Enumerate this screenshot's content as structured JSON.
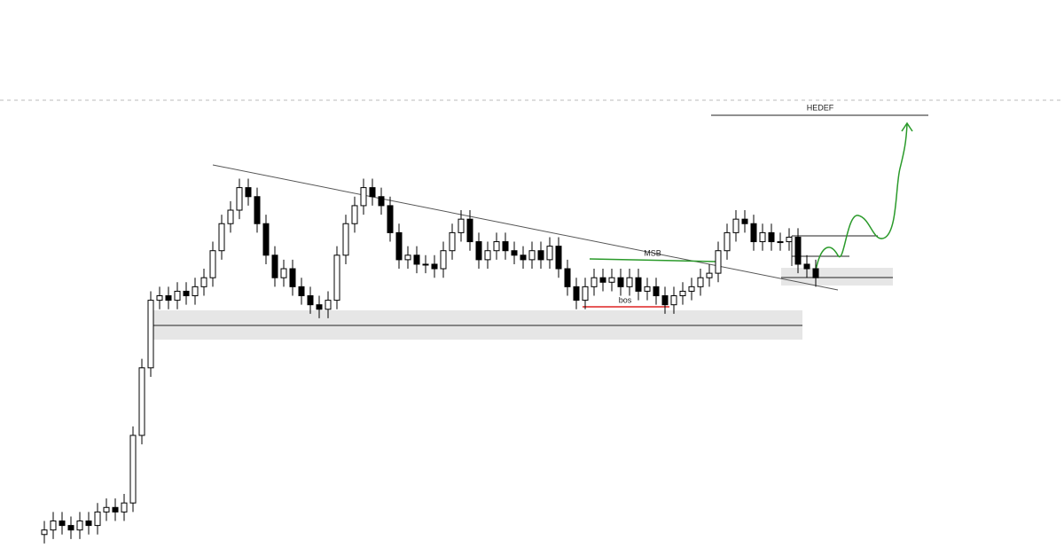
{
  "chart_data": {
    "type": "candlestick",
    "annotations": {
      "target": "HEDEF",
      "break": "MSB",
      "bos": "bos"
    },
    "ylim": [
      0,
      100
    ],
    "up_color": "#ffffff",
    "down_color": "#000000",
    "open": [
      3,
      4,
      6,
      5,
      4,
      6,
      5,
      8,
      9,
      8,
      10,
      25,
      40,
      55,
      56,
      55,
      57,
      56,
      58,
      60,
      66,
      72,
      75,
      80,
      78,
      72,
      65,
      60,
      62,
      58,
      56,
      54,
      53,
      55,
      65,
      72,
      76,
      80,
      78,
      76,
      70,
      64,
      65,
      63,
      63,
      62,
      66,
      70,
      73,
      68,
      64,
      66,
      68,
      66,
      65,
      64,
      66,
      64,
      67,
      62,
      58,
      55,
      58,
      60,
      59,
      60,
      58,
      60,
      57,
      58,
      56,
      54,
      56,
      57,
      58,
      60,
      61,
      66,
      70,
      73,
      72,
      68,
      70,
      68,
      68,
      69,
      63,
      62
    ],
    "high": [
      6,
      8,
      8,
      7,
      8,
      8,
      10,
      11,
      11,
      12,
      27,
      42,
      57,
      58,
      58,
      59,
      59,
      60,
      62,
      68,
      74,
      77,
      82,
      82,
      80,
      74,
      67,
      64,
      64,
      60,
      58,
      56,
      57,
      67,
      74,
      78,
      82,
      82,
      80,
      78,
      72,
      67,
      67,
      65,
      65,
      68,
      72,
      75,
      75,
      70,
      68,
      70,
      70,
      68,
      67,
      68,
      68,
      69,
      69,
      64,
      60,
      60,
      62,
      62,
      62,
      62,
      62,
      62,
      60,
      60,
      58,
      58,
      59,
      60,
      62,
      63,
      68,
      72,
      75,
      75,
      74,
      72,
      72,
      70,
      71,
      71,
      65,
      64
    ],
    "low": [
      1,
      2,
      3,
      2,
      2,
      3,
      3,
      6,
      6,
      6,
      8,
      23,
      38,
      53,
      53,
      53,
      54,
      54,
      56,
      58,
      64,
      70,
      73,
      76,
      70,
      63,
      58,
      58,
      56,
      54,
      52,
      51,
      51,
      53,
      63,
      70,
      74,
      76,
      74,
      68,
      62,
      62,
      61,
      61,
      60,
      60,
      64,
      68,
      66,
      62,
      62,
      64,
      64,
      63,
      62,
      62,
      62,
      62,
      60,
      56,
      53,
      53,
      56,
      57,
      57,
      56,
      56,
      55,
      55,
      54,
      52,
      52,
      54,
      55,
      56,
      58,
      59,
      64,
      68,
      70,
      66,
      66,
      66,
      66,
      66,
      61,
      60,
      58
    ],
    "close": [
      4,
      6,
      5,
      4,
      6,
      5,
      8,
      9,
      8,
      10,
      25,
      40,
      55,
      56,
      55,
      57,
      56,
      58,
      60,
      66,
      72,
      75,
      80,
      78,
      72,
      65,
      60,
      62,
      58,
      56,
      54,
      53,
      55,
      65,
      72,
      76,
      80,
      78,
      76,
      70,
      64,
      65,
      63,
      63,
      62,
      66,
      70,
      73,
      68,
      64,
      66,
      68,
      66,
      65,
      64,
      66,
      64,
      67,
      62,
      58,
      55,
      58,
      60,
      59,
      60,
      58,
      60,
      57,
      58,
      56,
      54,
      56,
      57,
      58,
      60,
      61,
      66,
      70,
      73,
      72,
      68,
      70,
      68,
      68,
      69,
      63,
      62,
      60
    ]
  }
}
